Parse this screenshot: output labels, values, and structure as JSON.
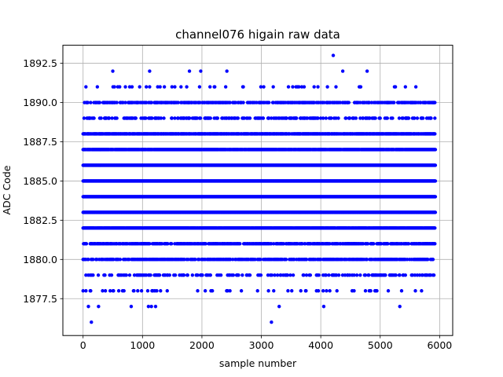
{
  "chart_data": {
    "type": "scatter",
    "title": "channel076 higain raw data",
    "xlabel": "sample number",
    "ylabel": "ADC Code",
    "xlim": [
      -340,
      6220
    ],
    "ylim": [
      1875.15,
      1893.65
    ],
    "xticks": [
      0,
      1000,
      2000,
      3000,
      4000,
      5000,
      6000
    ],
    "xtick_labels": [
      "0",
      "1000",
      "2000",
      "3000",
      "4000",
      "5000",
      "6000"
    ],
    "yticks": [
      1877.5,
      1880.0,
      1882.5,
      1885.0,
      1887.5,
      1890.0,
      1892.5
    ],
    "ytick_labels": [
      "1877.5",
      "1880.0",
      "1882.5",
      "1885.0",
      "1887.5",
      "1890.0",
      "1892.5"
    ],
    "grid": true,
    "marker_color": "#0000ff",
    "n_samples": 5930,
    "levels": [
      {
        "y": 1876,
        "density": 0.0
      },
      {
        "y": 1877,
        "density": 0.0
      },
      {
        "y": 1878,
        "density": 0.07
      },
      {
        "y": 1879,
        "density": 0.22
      },
      {
        "y": 1880,
        "density": 0.55
      },
      {
        "y": 1881,
        "density": 0.6
      },
      {
        "y": 1882,
        "density": 0.95
      },
      {
        "y": 1883,
        "density": 1.0
      },
      {
        "y": 1884,
        "density": 1.0
      },
      {
        "y": 1885,
        "density": 1.0
      },
      {
        "y": 1886,
        "density": 1.0
      },
      {
        "y": 1887,
        "density": 0.95
      },
      {
        "y": 1888,
        "density": 0.8
      },
      {
        "y": 1889,
        "density": 0.3
      },
      {
        "y": 1890,
        "density": 0.45
      },
      {
        "y": 1891,
        "density": 0.06
      },
      {
        "y": 1892,
        "density": 0.0
      },
      {
        "y": 1893,
        "density": 0.0
      }
    ],
    "outliers": [
      {
        "x": 140,
        "y": 1876
      },
      {
        "x": 3170,
        "y": 1876
      },
      {
        "x": 90,
        "y": 1877
      },
      {
        "x": 260,
        "y": 1877
      },
      {
        "x": 810,
        "y": 1877
      },
      {
        "x": 1100,
        "y": 1877
      },
      {
        "x": 1150,
        "y": 1877
      },
      {
        "x": 1220,
        "y": 1877
      },
      {
        "x": 3300,
        "y": 1877
      },
      {
        "x": 4050,
        "y": 1877
      },
      {
        "x": 5330,
        "y": 1877
      },
      {
        "x": 500,
        "y": 1892
      },
      {
        "x": 1120,
        "y": 1892
      },
      {
        "x": 1790,
        "y": 1892
      },
      {
        "x": 1980,
        "y": 1892
      },
      {
        "x": 2420,
        "y": 1892
      },
      {
        "x": 4370,
        "y": 1892
      },
      {
        "x": 4780,
        "y": 1892
      },
      {
        "x": 4210,
        "y": 1893
      }
    ]
  }
}
